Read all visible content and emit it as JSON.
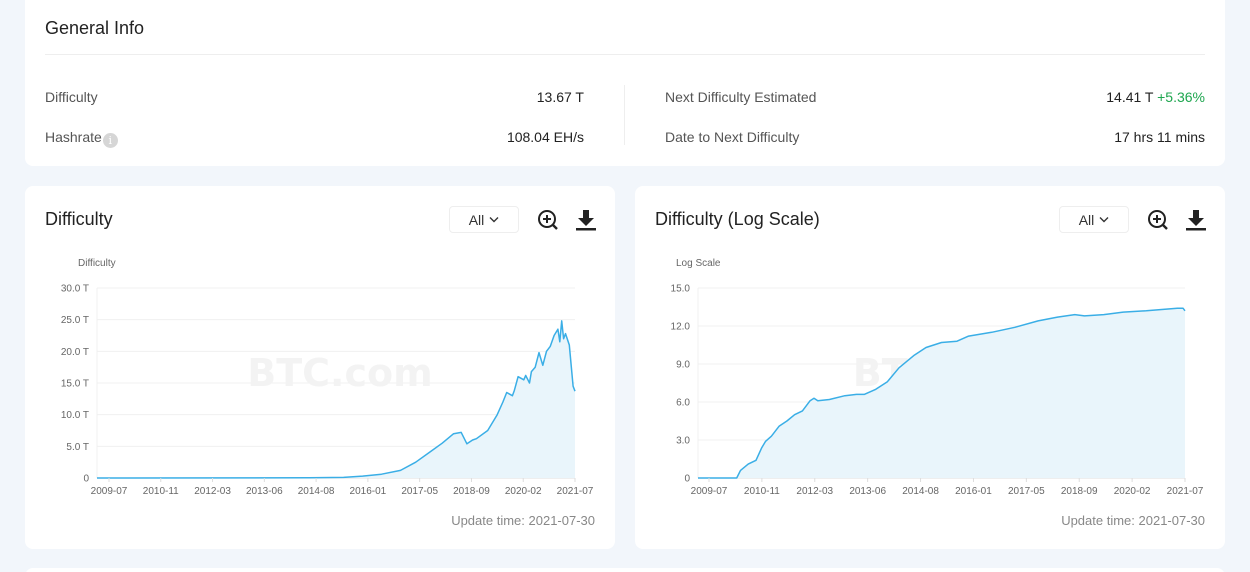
{
  "general": {
    "title": "General Info",
    "difficulty_label": "Difficulty",
    "difficulty_value": "13.67 T",
    "hashrate_label": "Hashrate",
    "hashrate_info_icon": "i",
    "hashrate_value": "108.04 EH/s",
    "next_label": "Next Difficulty Estimated",
    "next_value": "14.41 T",
    "next_change": "+5.36%",
    "date_label": "Date to Next Difficulty",
    "date_value": "17 hrs 11 mins"
  },
  "colors": {
    "accent": "#3aaee6",
    "fill": "#e9f5fb",
    "positive": "#1ea64f"
  },
  "charts": [
    {
      "title": "Difficulty",
      "range": "All",
      "update": "Update time: 2021-07-30",
      "watermark": "BTC.com"
    },
    {
      "title": "Difficulty (Log Scale)",
      "range": "All",
      "update": "Update time: 2021-07-30",
      "watermark": "BTC.com"
    }
  ],
  "chart_data": [
    {
      "type": "area",
      "title": "Difficulty",
      "ylabel": "Difficulty",
      "xlabel": "",
      "ylim": [
        0,
        30
      ],
      "yticks": [
        "0",
        "5.0 T",
        "10.0 T",
        "15.0 T",
        "20.0 T",
        "25.0 T",
        "30.0 T"
      ],
      "xticks": [
        "2009-07",
        "2010-11",
        "2012-03",
        "2013-06",
        "2014-08",
        "2016-01",
        "2017-05",
        "2018-09",
        "2020-02",
        "2021-07"
      ],
      "grid": true,
      "x": [
        2009.0,
        2013.0,
        2014.6,
        2015.5,
        2016.0,
        2016.5,
        2017.0,
        2017.4,
        2017.8,
        2018.1,
        2018.4,
        2018.6,
        2018.75,
        2018.9,
        2019.0,
        2019.3,
        2019.55,
        2019.7,
        2019.8,
        2019.95,
        2020.0,
        2020.1,
        2020.25,
        2020.3,
        2020.4,
        2020.45,
        2020.55,
        2020.65,
        2020.75,
        2020.85,
        2020.95,
        2021.05,
        2021.15,
        2021.2,
        2021.25,
        2021.3,
        2021.35,
        2021.45,
        2021.55,
        2021.6
      ],
      "values": [
        0,
        0.02,
        0.05,
        0.1,
        0.3,
        0.6,
        1.2,
        2.5,
        4.2,
        5.5,
        7.0,
        7.2,
        5.4,
        6.0,
        6.2,
        7.5,
        10.0,
        12.0,
        13.5,
        13.0,
        13.8,
        16.0,
        15.5,
        16.2,
        15.0,
        16.8,
        17.5,
        19.8,
        17.8,
        20.0,
        20.8,
        22.5,
        23.5,
        21.5,
        24.8,
        22.0,
        22.8,
        21.0,
        14.5,
        13.7
      ],
      "xrange": [
        2009.0,
        2021.6
      ]
    },
    {
      "type": "area",
      "title": "Difficulty (Log Scale)",
      "ylabel": "Log Scale",
      "xlabel": "",
      "ylim": [
        0,
        15
      ],
      "yticks": [
        "0",
        "3.0",
        "6.0",
        "9.0",
        "12.0",
        "15.0"
      ],
      "xticks": [
        "2009-07",
        "2010-11",
        "2012-03",
        "2013-06",
        "2014-08",
        "2016-01",
        "2017-05",
        "2018-09",
        "2020-02",
        "2021-07"
      ],
      "grid": true,
      "x": [
        2009.0,
        2010.0,
        2010.1,
        2010.3,
        2010.5,
        2010.65,
        2010.75,
        2010.9,
        2011.1,
        2011.3,
        2011.5,
        2011.7,
        2011.9,
        2012.0,
        2012.1,
        2012.4,
        2012.8,
        2013.1,
        2013.3,
        2013.6,
        2013.9,
        2014.2,
        2014.6,
        2014.9,
        2015.3,
        2015.7,
        2016.0,
        2016.6,
        2017.2,
        2017.8,
        2018.3,
        2018.75,
        2019.0,
        2019.5,
        2020.0,
        2020.6,
        2021.0,
        2021.4,
        2021.55,
        2021.6
      ],
      "values": [
        0,
        0,
        0.6,
        1.1,
        1.4,
        2.4,
        2.9,
        3.3,
        4.1,
        4.5,
        5.0,
        5.3,
        6.1,
        6.3,
        6.1,
        6.2,
        6.5,
        6.6,
        6.6,
        7.0,
        7.6,
        8.7,
        9.7,
        10.3,
        10.7,
        10.8,
        11.2,
        11.5,
        11.9,
        12.4,
        12.7,
        12.9,
        12.8,
        12.9,
        13.1,
        13.2,
        13.3,
        13.4,
        13.4,
        13.2
      ],
      "xrange": [
        2009.0,
        2021.6
      ]
    }
  ]
}
